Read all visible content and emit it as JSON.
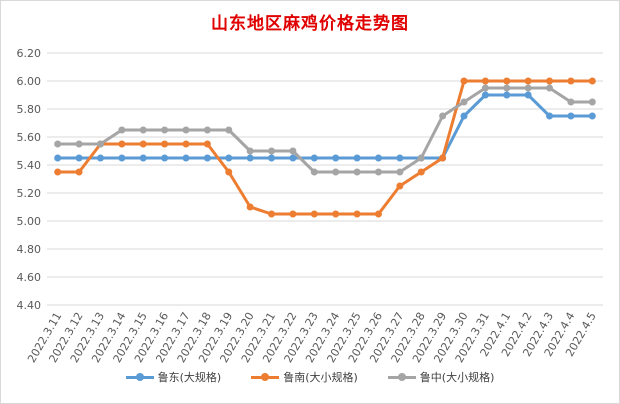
{
  "chart_data": {
    "type": "line",
    "title": "山东地区麻鸡价格走势图",
    "categories": [
      "2022.3.11",
      "2022.3.12",
      "2022.3.13",
      "2022.3.14",
      "2022.3.15",
      "2022.3.16",
      "2022.3.17",
      "2022.3.18",
      "2022.3.19",
      "2022.3.20",
      "2022.3.21",
      "2022.3.22",
      "2022.3.23",
      "2022.3.24",
      "2022.3.25",
      "2022.3.26",
      "2022.3.27",
      "2022.3.28",
      "2022.3.29",
      "2022.3.30",
      "2022.3.31",
      "2022.4.1",
      "2022.4.2",
      "2022.4.3",
      "2022.4.4",
      "2022.4.5"
    ],
    "ylim": [
      4.4,
      6.2
    ],
    "yticks": [
      "6.20",
      "6.00",
      "5.80",
      "5.60",
      "5.40",
      "5.20",
      "5.00",
      "4.80",
      "4.60",
      "4.40"
    ],
    "grid": true,
    "legend_position": "bottom",
    "series": [
      {
        "name": "鲁东(大规格)",
        "color": "#5b9bd5",
        "values": [
          5.45,
          5.45,
          5.45,
          5.45,
          5.45,
          5.45,
          5.45,
          5.45,
          5.45,
          5.45,
          5.45,
          5.45,
          5.45,
          5.45,
          5.45,
          5.45,
          5.45,
          5.45,
          5.45,
          5.75,
          5.9,
          5.9,
          5.9,
          5.75,
          5.75,
          5.75
        ]
      },
      {
        "name": "鲁南(大小规格)",
        "color": "#ed7d31",
        "values": [
          5.35,
          5.35,
          5.55,
          5.55,
          5.55,
          5.55,
          5.55,
          5.55,
          5.35,
          5.1,
          5.05,
          5.05,
          5.05,
          5.05,
          5.05,
          5.05,
          5.25,
          5.35,
          5.45,
          6.0,
          6.0,
          6.0,
          6.0,
          6.0,
          6.0,
          6.0
        ]
      },
      {
        "name": "鲁中(大小规格)",
        "color": "#a5a5a5",
        "values": [
          5.55,
          5.55,
          5.55,
          5.65,
          5.65,
          5.65,
          5.65,
          5.65,
          5.65,
          5.5,
          5.5,
          5.5,
          5.35,
          5.35,
          5.35,
          5.35,
          5.35,
          5.45,
          5.75,
          5.85,
          5.95,
          5.95,
          5.95,
          5.95,
          5.85,
          5.85
        ]
      }
    ]
  }
}
